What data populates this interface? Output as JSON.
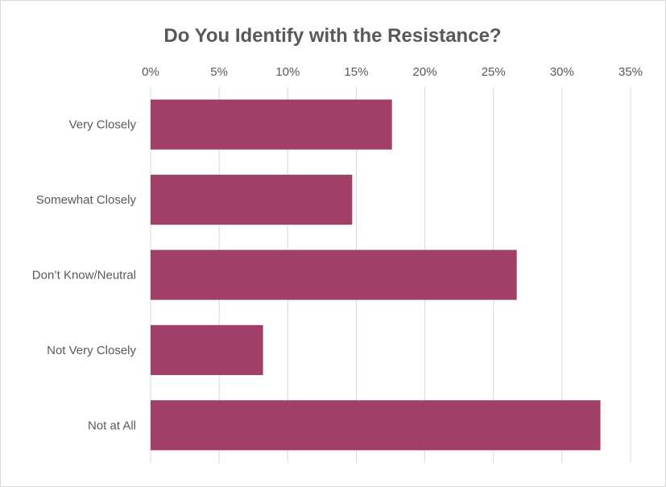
{
  "chart_data": {
    "type": "bar",
    "orientation": "horizontal",
    "title": "Do You Identify with the Resistance?",
    "categories": [
      "Very Closely",
      "Somewhat Closely",
      "Don’t Know/Neutral",
      "Not Very Closely",
      "Not at All"
    ],
    "values": [
      17.6,
      14.7,
      26.7,
      8.2,
      32.8
    ],
    "xlim": [
      0,
      35
    ],
    "x_ticks": [
      "0%",
      "5%",
      "10%",
      "15%",
      "20%",
      "25%",
      "30%",
      "35%"
    ],
    "x_axis_position": "top",
    "grid": true,
    "legend": "none",
    "bar_color": "#a04069",
    "grid_color": "#d9d9d9"
  }
}
